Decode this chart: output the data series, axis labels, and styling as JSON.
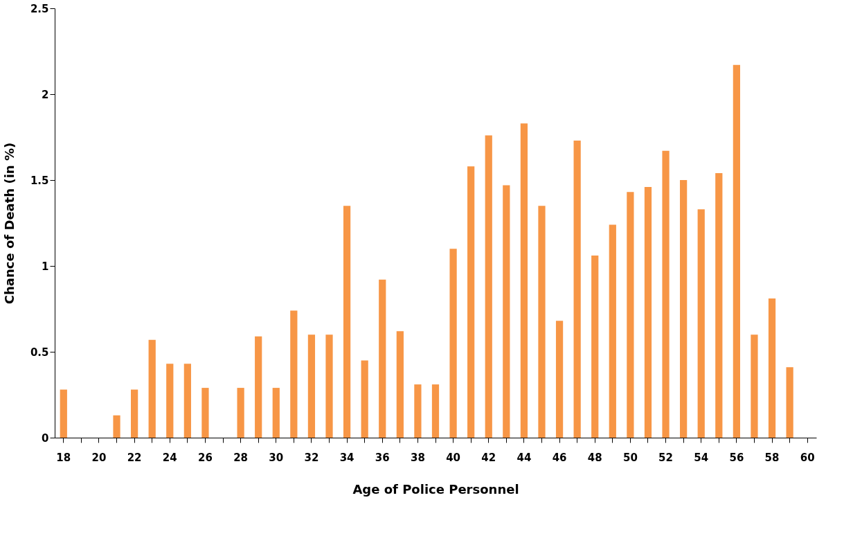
{
  "chart_data": {
    "type": "bar",
    "xlabel": "Age of Police Personnel",
    "ylabel": "Chance of Death (in %)",
    "categories": [
      "18",
      null,
      "20",
      null,
      "22",
      null,
      "24",
      null,
      "26",
      null,
      "28",
      null,
      "30",
      null,
      "32",
      null,
      "34",
      null,
      "36",
      null,
      "38",
      null,
      "40",
      null,
      "42",
      null,
      "44",
      null,
      "46",
      null,
      "48",
      null,
      "50",
      null,
      "52",
      null,
      "54",
      null,
      "56",
      null,
      "58",
      null,
      "60"
    ],
    "values": [
      0.28,
      0,
      0,
      0.13,
      0.28,
      0.57,
      0.43,
      0.43,
      0.29,
      0,
      0.29,
      0.59,
      0.29,
      0.74,
      0.6,
      0.6,
      1.35,
      0.45,
      0.92,
      0.62,
      0.31,
      0.31,
      1.1,
      1.58,
      1.76,
      1.47,
      1.83,
      1.35,
      0.68,
      1.73,
      1.06,
      1.24,
      1.43,
      1.46,
      1.67,
      1.5,
      1.33,
      1.54,
      2.17,
      0.6,
      0.81,
      0.41,
      null
    ],
    "color": "#f79646",
    "ylim": [
      0,
      2.5
    ],
    "yticks": [
      0,
      0.5,
      1,
      1.5,
      2,
      2.5
    ],
    "grid": false
  }
}
